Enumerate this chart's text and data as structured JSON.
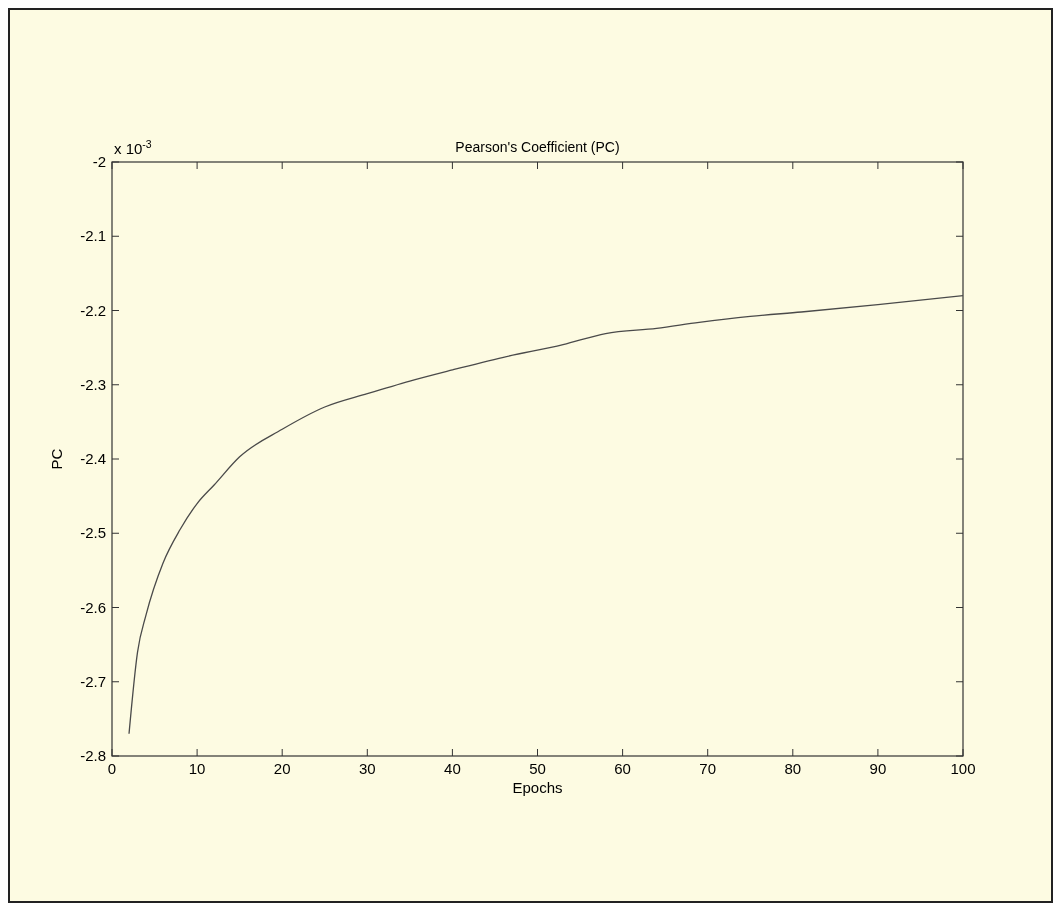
{
  "chart_data": {
    "type": "line",
    "title": "Pearson's Coefficient (PC)",
    "xlabel": "Epochs",
    "ylabel": "PC",
    "annotations": [
      "x 10$^{-3}$"
    ],
    "x": [
      2,
      3,
      4,
      6,
      8,
      10,
      12,
      15,
      20,
      25,
      30,
      35,
      40,
      46,
      53,
      58,
      64,
      69,
      75,
      81,
      90,
      100
    ],
    "series": [
      {
        "color": "#4a4a4a",
        "values": [
          -2.77,
          -2.66,
          -2.61,
          -2.54,
          -2.495,
          -2.46,
          -2.435,
          -2.397,
          -2.36,
          -2.33,
          -2.312,
          -2.295,
          -2.28,
          -2.263,
          -2.246,
          -2.231,
          -2.224,
          -2.216,
          -2.208,
          -2.202,
          -2.192,
          -2.18
        ]
      }
    ],
    "xlim": [
      0,
      100
    ],
    "xticks": [
      0,
      10,
      20,
      30,
      40,
      50,
      60,
      70,
      80,
      90,
      100
    ],
    "ylim": [
      -2.8,
      -2
    ],
    "yticks": [
      -2.8,
      -2.7,
      -2.6,
      -2.5,
      -2.4,
      -2.3,
      -2.2,
      -2.1,
      -2
    ],
    "grid": false,
    "marker": "none",
    "line_style": "solid"
  }
}
